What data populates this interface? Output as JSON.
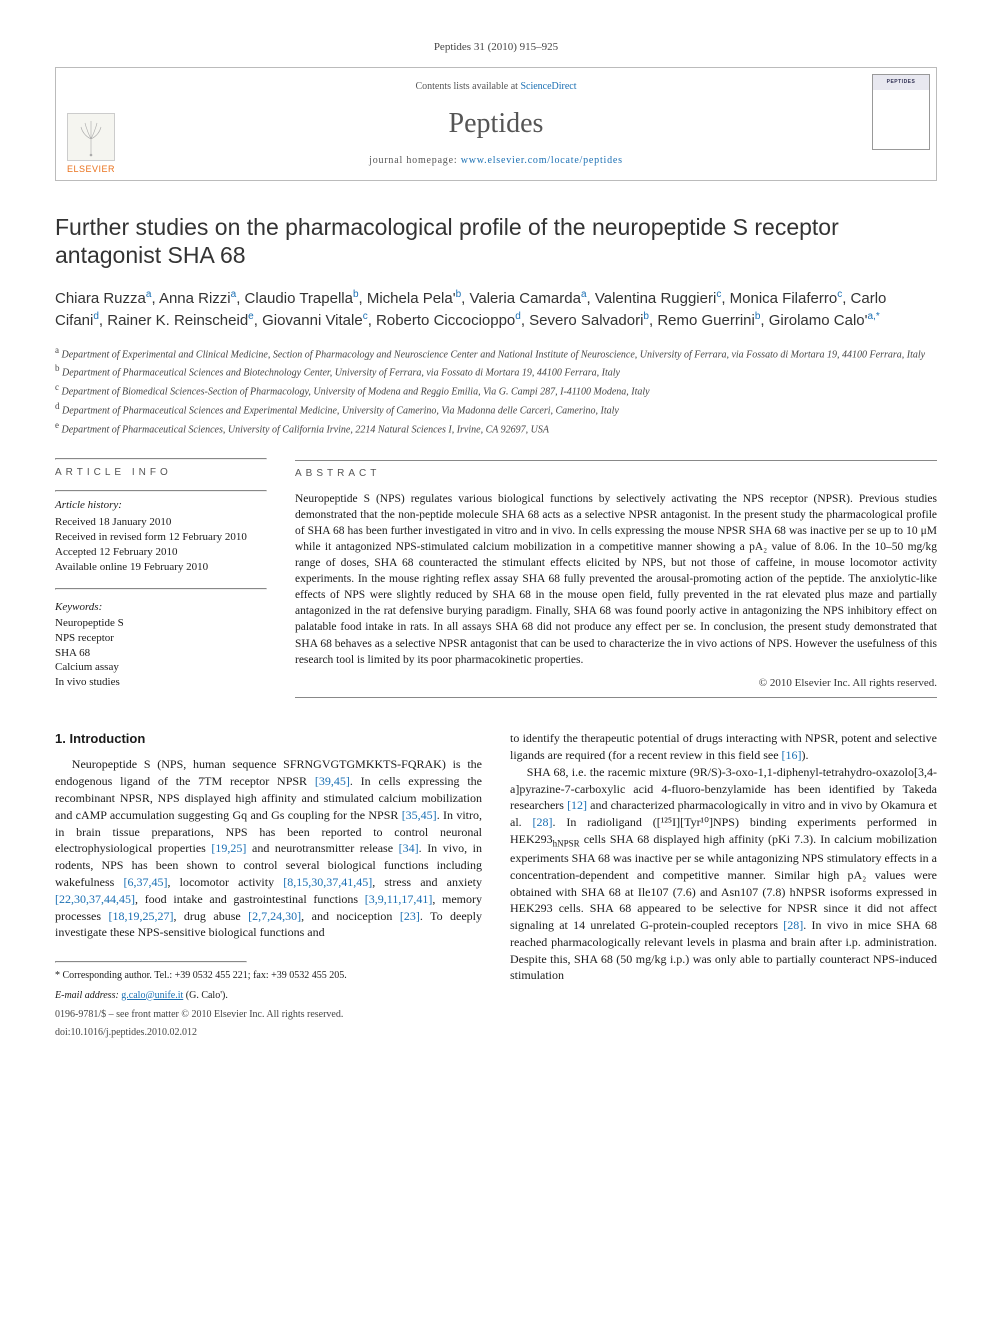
{
  "journal_ref": "Peptides 31 (2010) 915–925",
  "header": {
    "contents_prefix": "Contents lists available at ",
    "contents_link": "ScienceDirect",
    "journal_name": "Peptides",
    "homepage_prefix": "journal homepage: ",
    "homepage_url": "www.elsevier.com/locate/peptides",
    "publisher": "ELSEVIER"
  },
  "title": "Further studies on the pharmacological profile of the neuropeptide S receptor antagonist SHA 68",
  "authors_html": "Chiara Ruzza<sup>a</sup>, Anna Rizzi<sup>a</sup>, Claudio Trapella<sup>b</sup>, Michela Pela'<sup>b</sup>, Valeria Camarda<sup>a</sup>, Valentina Ruggieri<sup>c</sup>, Monica Filaferro<sup>c</sup>, Carlo Cifani<sup>d</sup>, Rainer K. Reinscheid<sup>e</sup>, Giovanni Vitale<sup>c</sup>, Roberto Ciccocioppo<sup>d</sup>, Severo Salvadori<sup>b</sup>, Remo Guerrini<sup>b</sup>, Girolamo Calo'<sup>a,*</sup>",
  "affiliations": [
    {
      "tag": "a",
      "text": "Department of Experimental and Clinical Medicine, Section of Pharmacology and Neuroscience Center and National Institute of Neuroscience, University of Ferrara, via Fossato di Mortara 19, 44100 Ferrara, Italy"
    },
    {
      "tag": "b",
      "text": "Department of Pharmaceutical Sciences and Biotechnology Center, University of Ferrara, via Fossato di Mortara 19, 44100 Ferrara, Italy"
    },
    {
      "tag": "c",
      "text": "Department of Biomedical Sciences-Section of Pharmacology, University of Modena and Reggio Emilia, Via G. Campi 287, I-41100 Modena, Italy"
    },
    {
      "tag": "d",
      "text": "Department of Pharmaceutical Sciences and Experimental Medicine, University of Camerino, Via Madonna delle Carceri, Camerino, Italy"
    },
    {
      "tag": "e",
      "text": "Department of Pharmaceutical Sciences, University of California Irvine, 2214 Natural Sciences I, Irvine, CA 92697, USA"
    }
  ],
  "info": {
    "article_info_head": "ARTICLE INFO",
    "history_label": "Article history:",
    "history": [
      "Received 18 January 2010",
      "Received in revised form 12 February 2010",
      "Accepted 12 February 2010",
      "Available online 19 February 2010"
    ],
    "keywords_label": "Keywords:",
    "keywords": [
      "Neuropeptide S",
      "NPS receptor",
      "SHA 68",
      "Calcium assay",
      "In vivo studies"
    ]
  },
  "abstract": {
    "head": "ABSTRACT",
    "text": "Neuropeptide S (NPS) regulates various biological functions by selectively activating the NPS receptor (NPSR). Previous studies demonstrated that the non-peptide molecule SHA 68 acts as a selective NPSR antagonist. In the present study the pharmacological profile of SHA 68 has been further investigated in vitro and in vivo. In cells expressing the mouse NPSR SHA 68 was inactive per se up to 10 μM while it antagonized NPS-stimulated calcium mobilization in a competitive manner showing a pA₂ value of 8.06. In the 10–50 mg/kg range of doses, SHA 68 counteracted the stimulant effects elicited by NPS, but not those of caffeine, in mouse locomotor activity experiments. In the mouse righting reflex assay SHA 68 fully prevented the arousal-promoting action of the peptide. The anxiolytic-like effects of NPS were slightly reduced by SHA 68 in the mouse open field, fully prevented in the rat elevated plus maze and partially antagonized in the rat defensive burying paradigm. Finally, SHA 68 was found poorly active in antagonizing the NPS inhibitory effect on palatable food intake in rats. In all assays SHA 68 did not produce any effect per se. In conclusion, the present study demonstrated that SHA 68 behaves as a selective NPSR antagonist that can be used to characterize the in vivo actions of NPS. However the usefulness of this research tool is limited by its poor pharmacokinetic properties.",
    "copyright": "© 2010 Elsevier Inc. All rights reserved."
  },
  "body": {
    "intro_head": "1.  Introduction",
    "p1": "Neuropeptide S (NPS, human sequence SFRNGVGTGMKKTS-FQRAK) is the endogenous ligand of the 7TM receptor NPSR [39,45]. In cells expressing the recombinant NPSR, NPS displayed high affinity and stimulated calcium mobilization and cAMP accumulation suggesting Gq and Gs coupling for the NPSR [35,45]. In vitro, in brain tissue preparations, NPS has been reported to control neuronal electrophysiological properties [19,25] and neurotransmitter release [34]. In vivo, in rodents, NPS has been shown to control several biological functions including wakefulness [6,37,45], locomotor activity [8,15,30,37,41,45], stress and anxiety [22,30,37,44,45], food intake and gastrointestinal functions [3,9,11,17,41], memory processes [18,19,25,27], drug abuse [2,7,24,30], and nociception [23]. To deeply investigate these NPS-sensitive biological functions and",
    "p2": "to identify the therapeutic potential of drugs interacting with NPSR, potent and selective ligands are required (for a recent review in this field see [16]).",
    "p3": "SHA 68, i.e. the racemic mixture (9R/S)-3-oxo-1,1-diphenyl-tetrahydro-oxazolo[3,4-a]pyrazine-7-carboxylic acid 4-fluoro-benzylamide has been identified by Takeda researchers [12] and characterized pharmacologically in vitro and in vivo by Okamura et al. [28]. In radioligand ([¹²⁵I][Tyr¹⁰]NPS) binding experiments performed in HEK293hNPSR cells SHA 68 displayed high affinity (pKi 7.3). In calcium mobilization experiments SHA 68 was inactive per se while antagonizing NPS stimulatory effects in a concentration-dependent and competitive manner. Similar high pA₂ values were obtained with SHA 68 at Ile107 (7.6) and Asn107 (7.8) hNPSR isoforms expressed in HEK293 cells. SHA 68 appeared to be selective for NPSR since it did not affect signaling at 14 unrelated G-protein-coupled receptors [28]. In vivo in mice SHA 68 reached pharmacologically relevant levels in plasma and brain after i.p. administration. Despite this, SHA 68 (50 mg/kg i.p.) was only able to partially counteract NPS-induced stimulation"
  },
  "footnote": {
    "corresponding": "* Corresponding author. Tel.: +39 0532 455 221; fax: +39 0532 455 205.",
    "email_label": "E-mail address: ",
    "email": "g.calo@unife.it",
    "email_name": " (G. Calo')."
  },
  "footer": {
    "line1": "0196-9781/$ – see front matter © 2010 Elsevier Inc. All rights reserved.",
    "line2": "doi:10.1016/j.peptides.2010.02.012"
  },
  "colors": {
    "link": "#1a6fb3",
    "elsevier": "#e9711c",
    "text": "#1a1a1a",
    "rule": "#888888"
  }
}
